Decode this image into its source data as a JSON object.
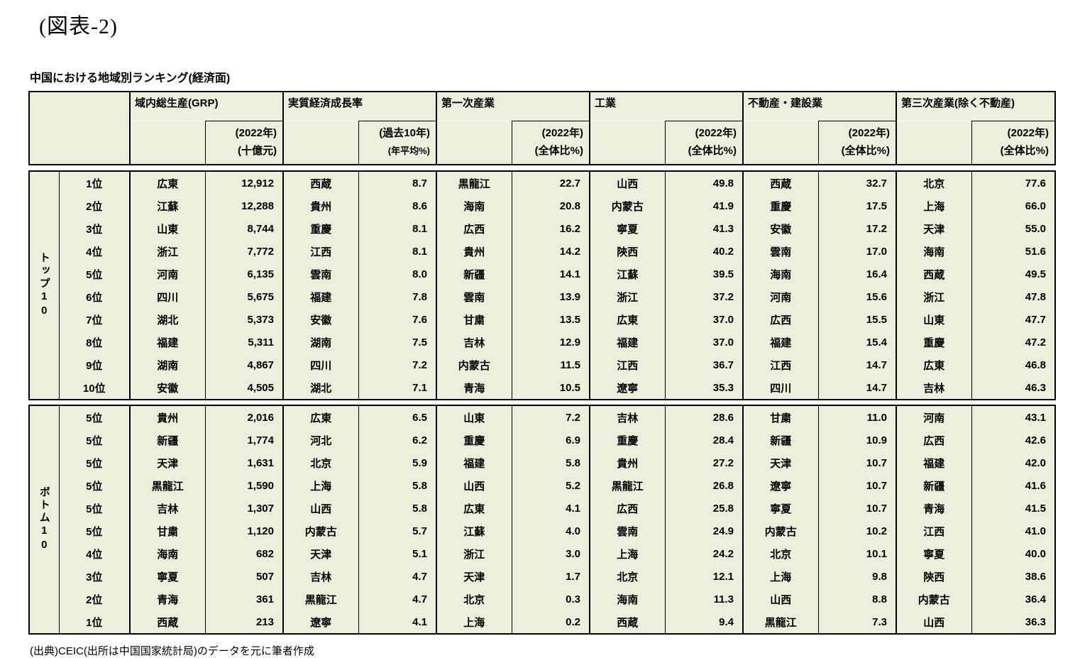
{
  "page": {
    "title": "(図表-2)",
    "subtitle": "中国における地域別ランキング(経済面)",
    "source_note": "(出典)CEIC(出所は中国国家統計局)のデータを元に筆者作成"
  },
  "table": {
    "groups": [
      {
        "label": "域内総生産(GRP)",
        "sub1": "(2022年)",
        "sub2": "(十億元)"
      },
      {
        "label": "実質経済成長率",
        "sub1": "(過去10年)",
        "sub2": "(年平均%)"
      },
      {
        "label": "第一次産業",
        "sub1": "(2022年)",
        "sub2": "(全体比%)"
      },
      {
        "label": "工業",
        "sub1": "(2022年)",
        "sub2": "(全体比%)"
      },
      {
        "label": "不動産・建設業",
        "sub1": "(2022年)",
        "sub2": "(全体比%)"
      },
      {
        "label": "第三次産業(除く不動産)",
        "sub1": "(2022年)",
        "sub2": "(全体比%)"
      }
    ],
    "blocks": [
      {
        "label": "トップ10",
        "rows": [
          {
            "rank": "1位",
            "cells": [
              [
                "広東",
                "12,912"
              ],
              [
                "西蔵",
                "8.7"
              ],
              [
                "黒龍江",
                "22.7"
              ],
              [
                "山西",
                "49.8"
              ],
              [
                "西蔵",
                "32.7"
              ],
              [
                "北京",
                "77.6"
              ]
            ]
          },
          {
            "rank": "2位",
            "cells": [
              [
                "江蘇",
                "12,288"
              ],
              [
                "貴州",
                "8.6"
              ],
              [
                "海南",
                "20.8"
              ],
              [
                "内蒙古",
                "41.9"
              ],
              [
                "重慶",
                "17.5"
              ],
              [
                "上海",
                "66.0"
              ]
            ]
          },
          {
            "rank": "3位",
            "cells": [
              [
                "山東",
                "8,744"
              ],
              [
                "重慶",
                "8.1"
              ],
              [
                "広西",
                "16.2"
              ],
              [
                "寧夏",
                "41.3"
              ],
              [
                "安徽",
                "17.2"
              ],
              [
                "天津",
                "55.0"
              ]
            ]
          },
          {
            "rank": "4位",
            "cells": [
              [
                "浙江",
                "7,772"
              ],
              [
                "江西",
                "8.1"
              ],
              [
                "貴州",
                "14.2"
              ],
              [
                "陝西",
                "40.2"
              ],
              [
                "雲南",
                "17.0"
              ],
              [
                "海南",
                "51.6"
              ]
            ]
          },
          {
            "rank": "5位",
            "cells": [
              [
                "河南",
                "6,135"
              ],
              [
                "雲南",
                "8.0"
              ],
              [
                "新疆",
                "14.1"
              ],
              [
                "江蘇",
                "39.5"
              ],
              [
                "海南",
                "16.4"
              ],
              [
                "西蔵",
                "49.5"
              ]
            ]
          },
          {
            "rank": "6位",
            "cells": [
              [
                "四川",
                "5,675"
              ],
              [
                "福建",
                "7.8"
              ],
              [
                "雲南",
                "13.9"
              ],
              [
                "浙江",
                "37.2"
              ],
              [
                "河南",
                "15.6"
              ],
              [
                "浙江",
                "47.8"
              ]
            ]
          },
          {
            "rank": "7位",
            "cells": [
              [
                "湖北",
                "5,373"
              ],
              [
                "安徽",
                "7.6"
              ],
              [
                "甘粛",
                "13.5"
              ],
              [
                "広東",
                "37.0"
              ],
              [
                "広西",
                "15.5"
              ],
              [
                "山東",
                "47.7"
              ]
            ]
          },
          {
            "rank": "8位",
            "cells": [
              [
                "福建",
                "5,311"
              ],
              [
                "湖南",
                "7.5"
              ],
              [
                "吉林",
                "12.9"
              ],
              [
                "福建",
                "37.0"
              ],
              [
                "福建",
                "15.4"
              ],
              [
                "重慶",
                "47.2"
              ]
            ]
          },
          {
            "rank": "9位",
            "cells": [
              [
                "湖南",
                "4,867"
              ],
              [
                "四川",
                "7.2"
              ],
              [
                "内蒙古",
                "11.5"
              ],
              [
                "江西",
                "36.7"
              ],
              [
                "江西",
                "14.7"
              ],
              [
                "広東",
                "46.8"
              ]
            ]
          },
          {
            "rank": "10位",
            "cells": [
              [
                "安徽",
                "4,505"
              ],
              [
                "湖北",
                "7.1"
              ],
              [
                "青海",
                "10.5"
              ],
              [
                "遼寧",
                "35.3"
              ],
              [
                "四川",
                "14.7"
              ],
              [
                "吉林",
                "46.3"
              ]
            ]
          }
        ]
      },
      {
        "label": "ボトム10",
        "rows": [
          {
            "rank": "5位",
            "cells": [
              [
                "貴州",
                "2,016"
              ],
              [
                "広東",
                "6.5"
              ],
              [
                "山東",
                "7.2"
              ],
              [
                "吉林",
                "28.6"
              ],
              [
                "甘粛",
                "11.0"
              ],
              [
                "河南",
                "43.1"
              ]
            ]
          },
          {
            "rank": "5位",
            "cells": [
              [
                "新疆",
                "1,774"
              ],
              [
                "河北",
                "6.2"
              ],
              [
                "重慶",
                "6.9"
              ],
              [
                "重慶",
                "28.4"
              ],
              [
                "新疆",
                "10.9"
              ],
              [
                "広西",
                "42.6"
              ]
            ]
          },
          {
            "rank": "5位",
            "cells": [
              [
                "天津",
                "1,631"
              ],
              [
                "北京",
                "5.9"
              ],
              [
                "福建",
                "5.8"
              ],
              [
                "貴州",
                "27.2"
              ],
              [
                "天津",
                "10.7"
              ],
              [
                "福建",
                "42.0"
              ]
            ]
          },
          {
            "rank": "5位",
            "cells": [
              [
                "黒龍江",
                "1,590"
              ],
              [
                "上海",
                "5.8"
              ],
              [
                "山西",
                "5.2"
              ],
              [
                "黒龍江",
                "26.8"
              ],
              [
                "遼寧",
                "10.7"
              ],
              [
                "新疆",
                "41.6"
              ]
            ]
          },
          {
            "rank": "5位",
            "cells": [
              [
                "吉林",
                "1,307"
              ],
              [
                "山西",
                "5.8"
              ],
              [
                "広東",
                "4.1"
              ],
              [
                "広西",
                "25.8"
              ],
              [
                "寧夏",
                "10.7"
              ],
              [
                "青海",
                "41.5"
              ]
            ]
          },
          {
            "rank": "5位",
            "cells": [
              [
                "甘粛",
                "1,120"
              ],
              [
                "内蒙古",
                "5.7"
              ],
              [
                "江蘇",
                "4.0"
              ],
              [
                "雲南",
                "24.9"
              ],
              [
                "内蒙古",
                "10.2"
              ],
              [
                "江西",
                "41.0"
              ]
            ]
          },
          {
            "rank": "4位",
            "cells": [
              [
                "海南",
                "682"
              ],
              [
                "天津",
                "5.1"
              ],
              [
                "浙江",
                "3.0"
              ],
              [
                "上海",
                "24.2"
              ],
              [
                "北京",
                "10.1"
              ],
              [
                "寧夏",
                "40.0"
              ]
            ]
          },
          {
            "rank": "3位",
            "cells": [
              [
                "寧夏",
                "507"
              ],
              [
                "吉林",
                "4.7"
              ],
              [
                "天津",
                "1.7"
              ],
              [
                "北京",
                "12.1"
              ],
              [
                "上海",
                "9.8"
              ],
              [
                "陝西",
                "38.6"
              ]
            ]
          },
          {
            "rank": "2位",
            "cells": [
              [
                "青海",
                "361"
              ],
              [
                "黒龍江",
                "4.7"
              ],
              [
                "北京",
                "0.3"
              ],
              [
                "海南",
                "11.3"
              ],
              [
                "山西",
                "8.8"
              ],
              [
                "内蒙古",
                "36.4"
              ]
            ]
          },
          {
            "rank": "1位",
            "cells": [
              [
                "西蔵",
                "213"
              ],
              [
                "遼寧",
                "4.1"
              ],
              [
                "上海",
                "0.2"
              ],
              [
                "西蔵",
                "9.4"
              ],
              [
                "黒龍江",
                "7.3"
              ],
              [
                "山西",
                "36.3"
              ]
            ]
          }
        ]
      }
    ],
    "colors": {
      "cell_background": "#ecefdb",
      "border": "#000000"
    }
  }
}
